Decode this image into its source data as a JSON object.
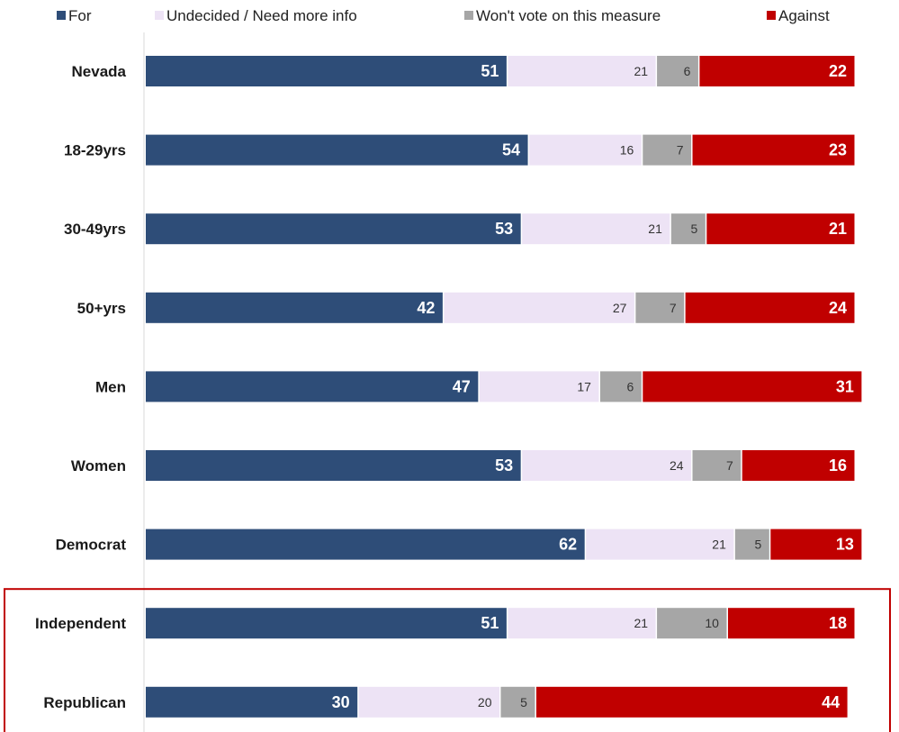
{
  "chart_data": {
    "type": "bar",
    "orientation": "horizontal",
    "stacked": true,
    "categories": [
      "Nevada",
      "18-29yrs",
      "30-49yrs",
      "50+yrs",
      "Men",
      "Women",
      "Democrat",
      "Independent",
      "Republican"
    ],
    "series": [
      {
        "name": "For",
        "color": "#2e4d78",
        "values": [
          51,
          54,
          53,
          42,
          47,
          53,
          62,
          51,
          30
        ]
      },
      {
        "name": "Undecided / Need more info",
        "color": "#ede3f5",
        "values": [
          21,
          16,
          21,
          27,
          17,
          24,
          21,
          21,
          20
        ]
      },
      {
        "name": "Won't vote on this measure",
        "color": "#a6a6a6",
        "values": [
          6,
          7,
          5,
          7,
          6,
          7,
          5,
          10,
          5
        ]
      },
      {
        "name": "Against",
        "color": "#c00000",
        "values": [
          22,
          23,
          21,
          24,
          31,
          16,
          13,
          18,
          44
        ]
      }
    ],
    "xlim": [
      0,
      100
    ],
    "legend_position": "top",
    "highlight": {
      "categories": [
        "Independent",
        "Republican"
      ],
      "color": "#c00000"
    }
  }
}
